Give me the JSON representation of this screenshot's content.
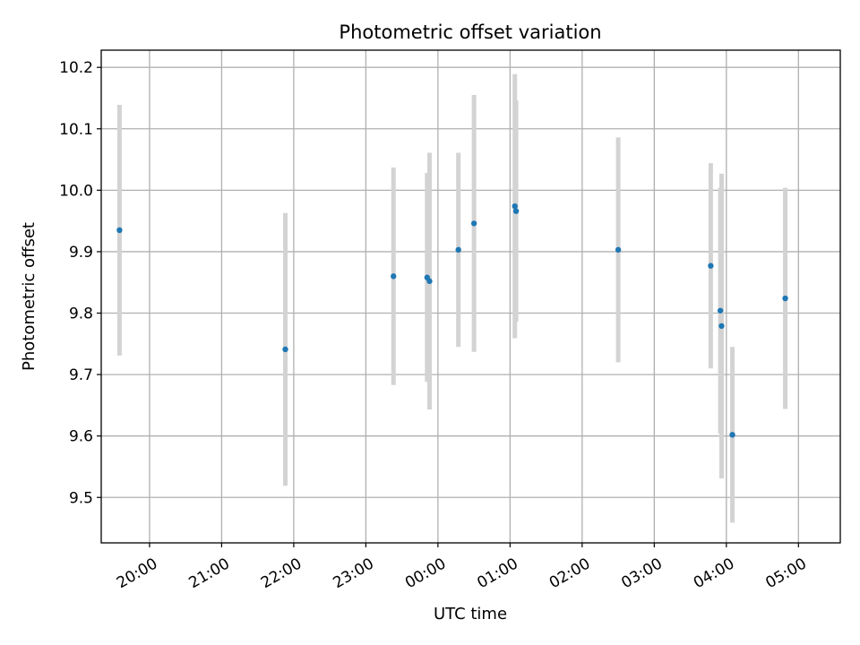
{
  "chart_data": {
    "type": "scatter",
    "title": "Photometric offset variation",
    "xlabel": "UTC time",
    "ylabel": "Photometric offset",
    "x_axis": {
      "unit": "hours since 19:00 UTC",
      "range": [
        0.33,
        10.58
      ],
      "ticks": [
        {
          "value": 1,
          "label": "20:00"
        },
        {
          "value": 2,
          "label": "21:00"
        },
        {
          "value": 3,
          "label": "22:00"
        },
        {
          "value": 4,
          "label": "23:00"
        },
        {
          "value": 5,
          "label": "00:00"
        },
        {
          "value": 6,
          "label": "01:00"
        },
        {
          "value": 7,
          "label": "02:00"
        },
        {
          "value": 8,
          "label": "03:00"
        },
        {
          "value": 9,
          "label": "04:00"
        },
        {
          "value": 10,
          "label": "05:00"
        }
      ]
    },
    "y_axis": {
      "range": [
        9.426,
        10.228
      ],
      "ticks": [
        {
          "value": 9.5,
          "label": "9.5"
        },
        {
          "value": 9.6,
          "label": "9.6"
        },
        {
          "value": 9.7,
          "label": "9.7"
        },
        {
          "value": 9.8,
          "label": "9.8"
        },
        {
          "value": 9.9,
          "label": "9.9"
        },
        {
          "value": 10.0,
          "label": "10.0"
        },
        {
          "value": 10.1,
          "label": "10.1"
        },
        {
          "value": 10.2,
          "label": "10.2"
        }
      ]
    },
    "grid": true,
    "colors": {
      "point": "#1f77b4",
      "errorbar": "#d3d3d3"
    },
    "points": [
      {
        "time": "19:35",
        "y": 9.935,
        "err": 0.204
      },
      {
        "time": "21:53",
        "y": 9.741,
        "err": 0.222
      },
      {
        "time": "23:23",
        "y": 9.86,
        "err": 0.177
      },
      {
        "time": "23:51",
        "y": 9.858,
        "err": 0.17
      },
      {
        "time": "23:53",
        "y": 9.852,
        "err": 0.209
      },
      {
        "time": "00:17",
        "y": 9.903,
        "err": 0.158
      },
      {
        "time": "00:30",
        "y": 9.946,
        "err": 0.209
      },
      {
        "time": "01:04",
        "y": 9.974,
        "err": 0.215
      },
      {
        "time": "01:05",
        "y": 9.966,
        "err": 0.18
      },
      {
        "time": "02:30",
        "y": 9.903,
        "err": 0.183
      },
      {
        "time": "03:47",
        "y": 9.877,
        "err": 0.167
      },
      {
        "time": "03:55",
        "y": 9.804,
        "err": 0.2
      },
      {
        "time": "03:56",
        "y": 9.779,
        "err": 0.248
      },
      {
        "time": "04:05",
        "y": 9.602,
        "err": 0.143
      },
      {
        "time": "04:49",
        "y": 9.824,
        "err": 0.18
      }
    ]
  }
}
